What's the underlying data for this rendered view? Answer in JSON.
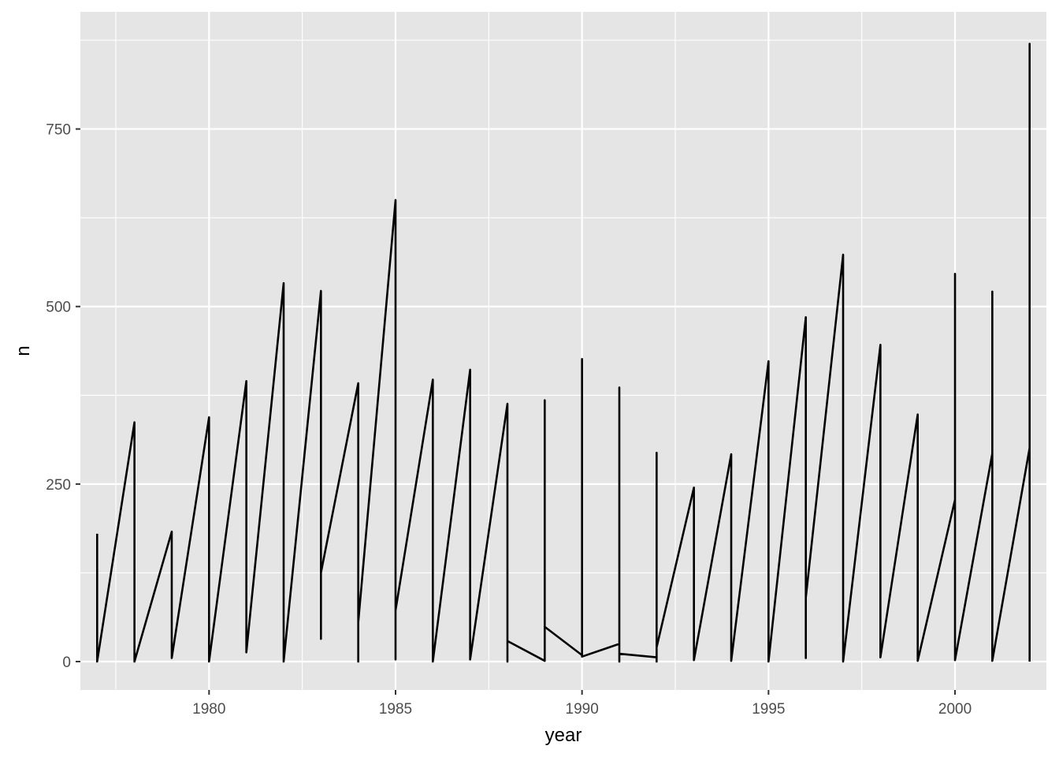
{
  "chart_data": {
    "type": "line",
    "title": "",
    "xlabel": "year",
    "ylabel": "n",
    "xlim": [
      1976.55,
      2002.45
    ],
    "ylim": [
      -40,
      915
    ],
    "x_ticks": [
      {
        "value": 1980,
        "label": "1980"
      },
      {
        "value": 1985,
        "label": "1985"
      },
      {
        "value": 1990,
        "label": "1990"
      },
      {
        "value": 1995,
        "label": "1995"
      },
      {
        "value": 2000,
        "label": "2000"
      }
    ],
    "y_ticks": [
      {
        "value": 0,
        "label": "0"
      },
      {
        "value": 250,
        "label": "250"
      },
      {
        "value": 500,
        "label": "500"
      },
      {
        "value": 750,
        "label": "750"
      }
    ],
    "grid": true,
    "legend": "none",
    "colors": {
      "panel": "#e5e5e5",
      "grid": "#ffffff",
      "line": "#000000",
      "text": "#4d4d4d"
    },
    "series": [
      {
        "values": [
          [
            1977,
            180
          ],
          [
            1977,
            0
          ],
          [
            1978,
            337
          ],
          [
            1978,
            0
          ],
          [
            1979,
            183
          ],
          [
            1979,
            5
          ],
          [
            1980,
            344
          ],
          [
            1980,
            0
          ],
          [
            1981,
            395
          ],
          [
            1981,
            13
          ],
          [
            1982,
            533
          ],
          [
            1982,
            0
          ],
          [
            1983,
            522
          ],
          [
            1983,
            32
          ],
          [
            1983,
            125
          ],
          [
            1984,
            392
          ],
          [
            1984,
            0
          ],
          [
            1984,
            55
          ],
          [
            1985,
            650
          ],
          [
            1985,
            3
          ],
          [
            1985,
            72
          ],
          [
            1986,
            397
          ],
          [
            1986,
            0
          ],
          [
            1987,
            411
          ],
          [
            1987,
            3
          ],
          [
            1988,
            363
          ],
          [
            1988,
            0
          ],
          [
            1988,
            29
          ],
          [
            1989,
            1
          ],
          [
            1989,
            368
          ],
          [
            1989,
            49
          ],
          [
            1990,
            9
          ],
          [
            1990,
            426
          ],
          [
            1990,
            7
          ],
          [
            1991,
            25
          ],
          [
            1991,
            386
          ],
          [
            1991,
            0
          ],
          [
            1991,
            11
          ],
          [
            1992,
            6
          ],
          [
            1992,
            294
          ],
          [
            1992,
            0
          ],
          [
            1992,
            20
          ],
          [
            1993,
            245
          ],
          [
            1993,
            2
          ],
          [
            1994,
            292
          ],
          [
            1994,
            1
          ],
          [
            1995,
            423
          ],
          [
            1995,
            0
          ],
          [
            1996,
            485
          ],
          [
            1996,
            5
          ],
          [
            1996,
            90
          ],
          [
            1997,
            573
          ],
          [
            1997,
            0
          ],
          [
            1998,
            446
          ],
          [
            1998,
            6
          ],
          [
            1999,
            348
          ],
          [
            1999,
            1
          ],
          [
            2000,
            228
          ],
          [
            2000,
            546
          ],
          [
            2000,
            2
          ],
          [
            2001,
            293
          ],
          [
            2001,
            521
          ],
          [
            2001,
            1
          ],
          [
            2002,
            301
          ],
          [
            2002,
            870
          ],
          [
            2002,
            0
          ]
        ]
      }
    ]
  }
}
